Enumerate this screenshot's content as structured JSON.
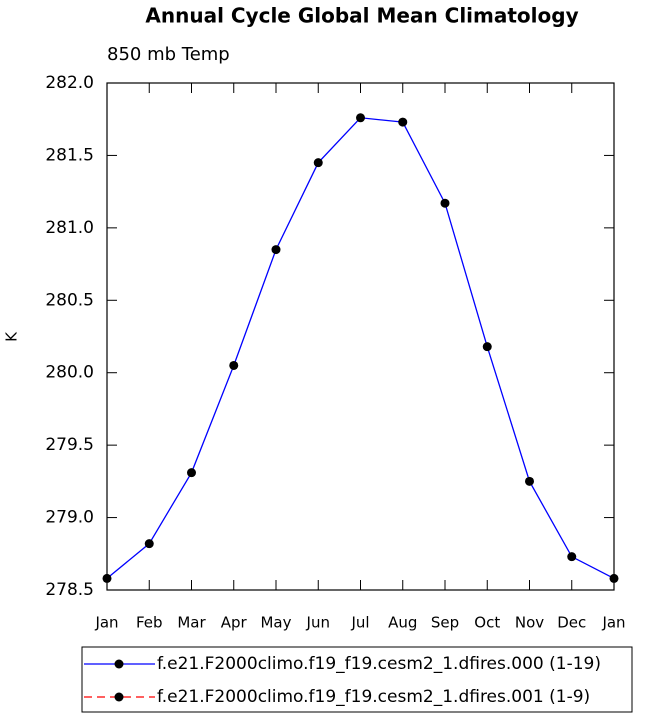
{
  "chart_data": {
    "type": "line",
    "title": "Annual Cycle Global Mean Climatology",
    "subtitle": "850 mb Temp",
    "y_label": "K",
    "categories": [
      "Jan",
      "Feb",
      "Mar",
      "Apr",
      "May",
      "Jun",
      "Jul",
      "Aug",
      "Sep",
      "Oct",
      "Nov",
      "Dec",
      "Jan"
    ],
    "series": [
      {
        "name": "f.e21.F2000climo.f19_f19.cesm2_1.dfires.000 (1-19)",
        "color": "#0000ff",
        "dash": "solid",
        "values": [
          278.58,
          278.82,
          279.31,
          280.05,
          280.85,
          281.45,
          281.76,
          281.73,
          281.17,
          280.18,
          279.25,
          278.73,
          278.58
        ]
      },
      {
        "name": "f.e21.F2000climo.f19_f19.cesm2_1.dfires.001 (1-9)",
        "color": "#ff0000",
        "dash": "dashed",
        "values": [
          null,
          null,
          null,
          null,
          null,
          null,
          null,
          null,
          null,
          null,
          null,
          null,
          null
        ]
      }
    ],
    "ylim": [
      278.5,
      282
    ],
    "yticks": [
      {
        "value": 278.5,
        "label": "278.5"
      },
      {
        "value": 279,
        "label": "279.0"
      },
      {
        "value": 279.5,
        "label": "279.5"
      },
      {
        "value": 280,
        "label": "280.0"
      },
      {
        "value": 280.5,
        "label": "280.5"
      },
      {
        "value": 281,
        "label": "281.0"
      },
      {
        "value": 281.5,
        "label": "281.5"
      },
      {
        "value": 282,
        "label": "282.0"
      }
    ]
  }
}
